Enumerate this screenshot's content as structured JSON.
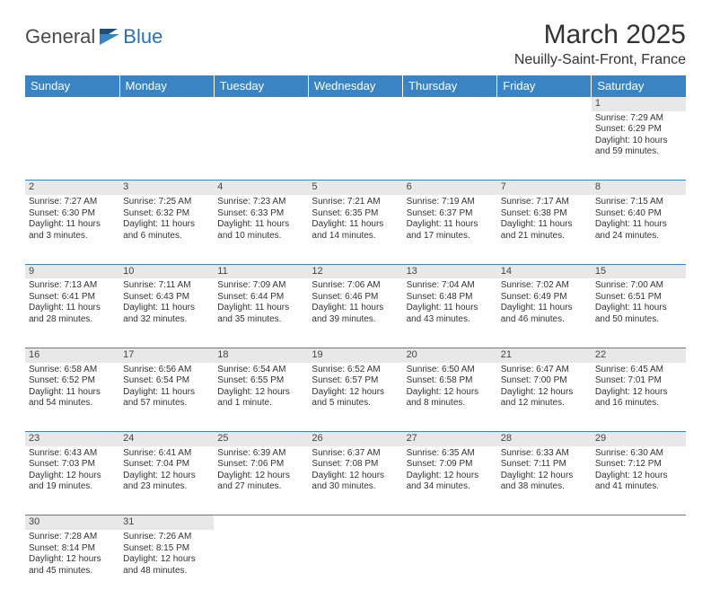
{
  "brand": {
    "part1": "General",
    "part2": "Blue"
  },
  "title": "March 2025",
  "location": "Neuilly-Saint-Front, France",
  "colors": {
    "header_bg": "#3b84c4",
    "header_text": "#ffffff",
    "daynum_bg": "#e8e8e8",
    "border": "#3b84c4",
    "text": "#333333",
    "logo_gray": "#4a4a4a",
    "logo_blue": "#2b6fb0"
  },
  "day_headers": [
    "Sunday",
    "Monday",
    "Tuesday",
    "Wednesday",
    "Thursday",
    "Friday",
    "Saturday"
  ],
  "weeks": [
    [
      null,
      null,
      null,
      null,
      null,
      null,
      {
        "n": "1",
        "sunrise": "Sunrise: 7:29 AM",
        "sunset": "Sunset: 6:29 PM",
        "daylight": "Daylight: 10 hours and 59 minutes."
      }
    ],
    [
      {
        "n": "2",
        "sunrise": "Sunrise: 7:27 AM",
        "sunset": "Sunset: 6:30 PM",
        "daylight": "Daylight: 11 hours and 3 minutes."
      },
      {
        "n": "3",
        "sunrise": "Sunrise: 7:25 AM",
        "sunset": "Sunset: 6:32 PM",
        "daylight": "Daylight: 11 hours and 6 minutes."
      },
      {
        "n": "4",
        "sunrise": "Sunrise: 7:23 AM",
        "sunset": "Sunset: 6:33 PM",
        "daylight": "Daylight: 11 hours and 10 minutes."
      },
      {
        "n": "5",
        "sunrise": "Sunrise: 7:21 AM",
        "sunset": "Sunset: 6:35 PM",
        "daylight": "Daylight: 11 hours and 14 minutes."
      },
      {
        "n": "6",
        "sunrise": "Sunrise: 7:19 AM",
        "sunset": "Sunset: 6:37 PM",
        "daylight": "Daylight: 11 hours and 17 minutes."
      },
      {
        "n": "7",
        "sunrise": "Sunrise: 7:17 AM",
        "sunset": "Sunset: 6:38 PM",
        "daylight": "Daylight: 11 hours and 21 minutes."
      },
      {
        "n": "8",
        "sunrise": "Sunrise: 7:15 AM",
        "sunset": "Sunset: 6:40 PM",
        "daylight": "Daylight: 11 hours and 24 minutes."
      }
    ],
    [
      {
        "n": "9",
        "sunrise": "Sunrise: 7:13 AM",
        "sunset": "Sunset: 6:41 PM",
        "daylight": "Daylight: 11 hours and 28 minutes."
      },
      {
        "n": "10",
        "sunrise": "Sunrise: 7:11 AM",
        "sunset": "Sunset: 6:43 PM",
        "daylight": "Daylight: 11 hours and 32 minutes."
      },
      {
        "n": "11",
        "sunrise": "Sunrise: 7:09 AM",
        "sunset": "Sunset: 6:44 PM",
        "daylight": "Daylight: 11 hours and 35 minutes."
      },
      {
        "n": "12",
        "sunrise": "Sunrise: 7:06 AM",
        "sunset": "Sunset: 6:46 PM",
        "daylight": "Daylight: 11 hours and 39 minutes."
      },
      {
        "n": "13",
        "sunrise": "Sunrise: 7:04 AM",
        "sunset": "Sunset: 6:48 PM",
        "daylight": "Daylight: 11 hours and 43 minutes."
      },
      {
        "n": "14",
        "sunrise": "Sunrise: 7:02 AM",
        "sunset": "Sunset: 6:49 PM",
        "daylight": "Daylight: 11 hours and 46 minutes."
      },
      {
        "n": "15",
        "sunrise": "Sunrise: 7:00 AM",
        "sunset": "Sunset: 6:51 PM",
        "daylight": "Daylight: 11 hours and 50 minutes."
      }
    ],
    [
      {
        "n": "16",
        "sunrise": "Sunrise: 6:58 AM",
        "sunset": "Sunset: 6:52 PM",
        "daylight": "Daylight: 11 hours and 54 minutes."
      },
      {
        "n": "17",
        "sunrise": "Sunrise: 6:56 AM",
        "sunset": "Sunset: 6:54 PM",
        "daylight": "Daylight: 11 hours and 57 minutes."
      },
      {
        "n": "18",
        "sunrise": "Sunrise: 6:54 AM",
        "sunset": "Sunset: 6:55 PM",
        "daylight": "Daylight: 12 hours and 1 minute."
      },
      {
        "n": "19",
        "sunrise": "Sunrise: 6:52 AM",
        "sunset": "Sunset: 6:57 PM",
        "daylight": "Daylight: 12 hours and 5 minutes."
      },
      {
        "n": "20",
        "sunrise": "Sunrise: 6:50 AM",
        "sunset": "Sunset: 6:58 PM",
        "daylight": "Daylight: 12 hours and 8 minutes."
      },
      {
        "n": "21",
        "sunrise": "Sunrise: 6:47 AM",
        "sunset": "Sunset: 7:00 PM",
        "daylight": "Daylight: 12 hours and 12 minutes."
      },
      {
        "n": "22",
        "sunrise": "Sunrise: 6:45 AM",
        "sunset": "Sunset: 7:01 PM",
        "daylight": "Daylight: 12 hours and 16 minutes."
      }
    ],
    [
      {
        "n": "23",
        "sunrise": "Sunrise: 6:43 AM",
        "sunset": "Sunset: 7:03 PM",
        "daylight": "Daylight: 12 hours and 19 minutes."
      },
      {
        "n": "24",
        "sunrise": "Sunrise: 6:41 AM",
        "sunset": "Sunset: 7:04 PM",
        "daylight": "Daylight: 12 hours and 23 minutes."
      },
      {
        "n": "25",
        "sunrise": "Sunrise: 6:39 AM",
        "sunset": "Sunset: 7:06 PM",
        "daylight": "Daylight: 12 hours and 27 minutes."
      },
      {
        "n": "26",
        "sunrise": "Sunrise: 6:37 AM",
        "sunset": "Sunset: 7:08 PM",
        "daylight": "Daylight: 12 hours and 30 minutes."
      },
      {
        "n": "27",
        "sunrise": "Sunrise: 6:35 AM",
        "sunset": "Sunset: 7:09 PM",
        "daylight": "Daylight: 12 hours and 34 minutes."
      },
      {
        "n": "28",
        "sunrise": "Sunrise: 6:33 AM",
        "sunset": "Sunset: 7:11 PM",
        "daylight": "Daylight: 12 hours and 38 minutes."
      },
      {
        "n": "29",
        "sunrise": "Sunrise: 6:30 AM",
        "sunset": "Sunset: 7:12 PM",
        "daylight": "Daylight: 12 hours and 41 minutes."
      }
    ],
    [
      {
        "n": "30",
        "sunrise": "Sunrise: 7:28 AM",
        "sunset": "Sunset: 8:14 PM",
        "daylight": "Daylight: 12 hours and 45 minutes."
      },
      {
        "n": "31",
        "sunrise": "Sunrise: 7:26 AM",
        "sunset": "Sunset: 8:15 PM",
        "daylight": "Daylight: 12 hours and 48 minutes."
      },
      null,
      null,
      null,
      null,
      null
    ]
  ]
}
